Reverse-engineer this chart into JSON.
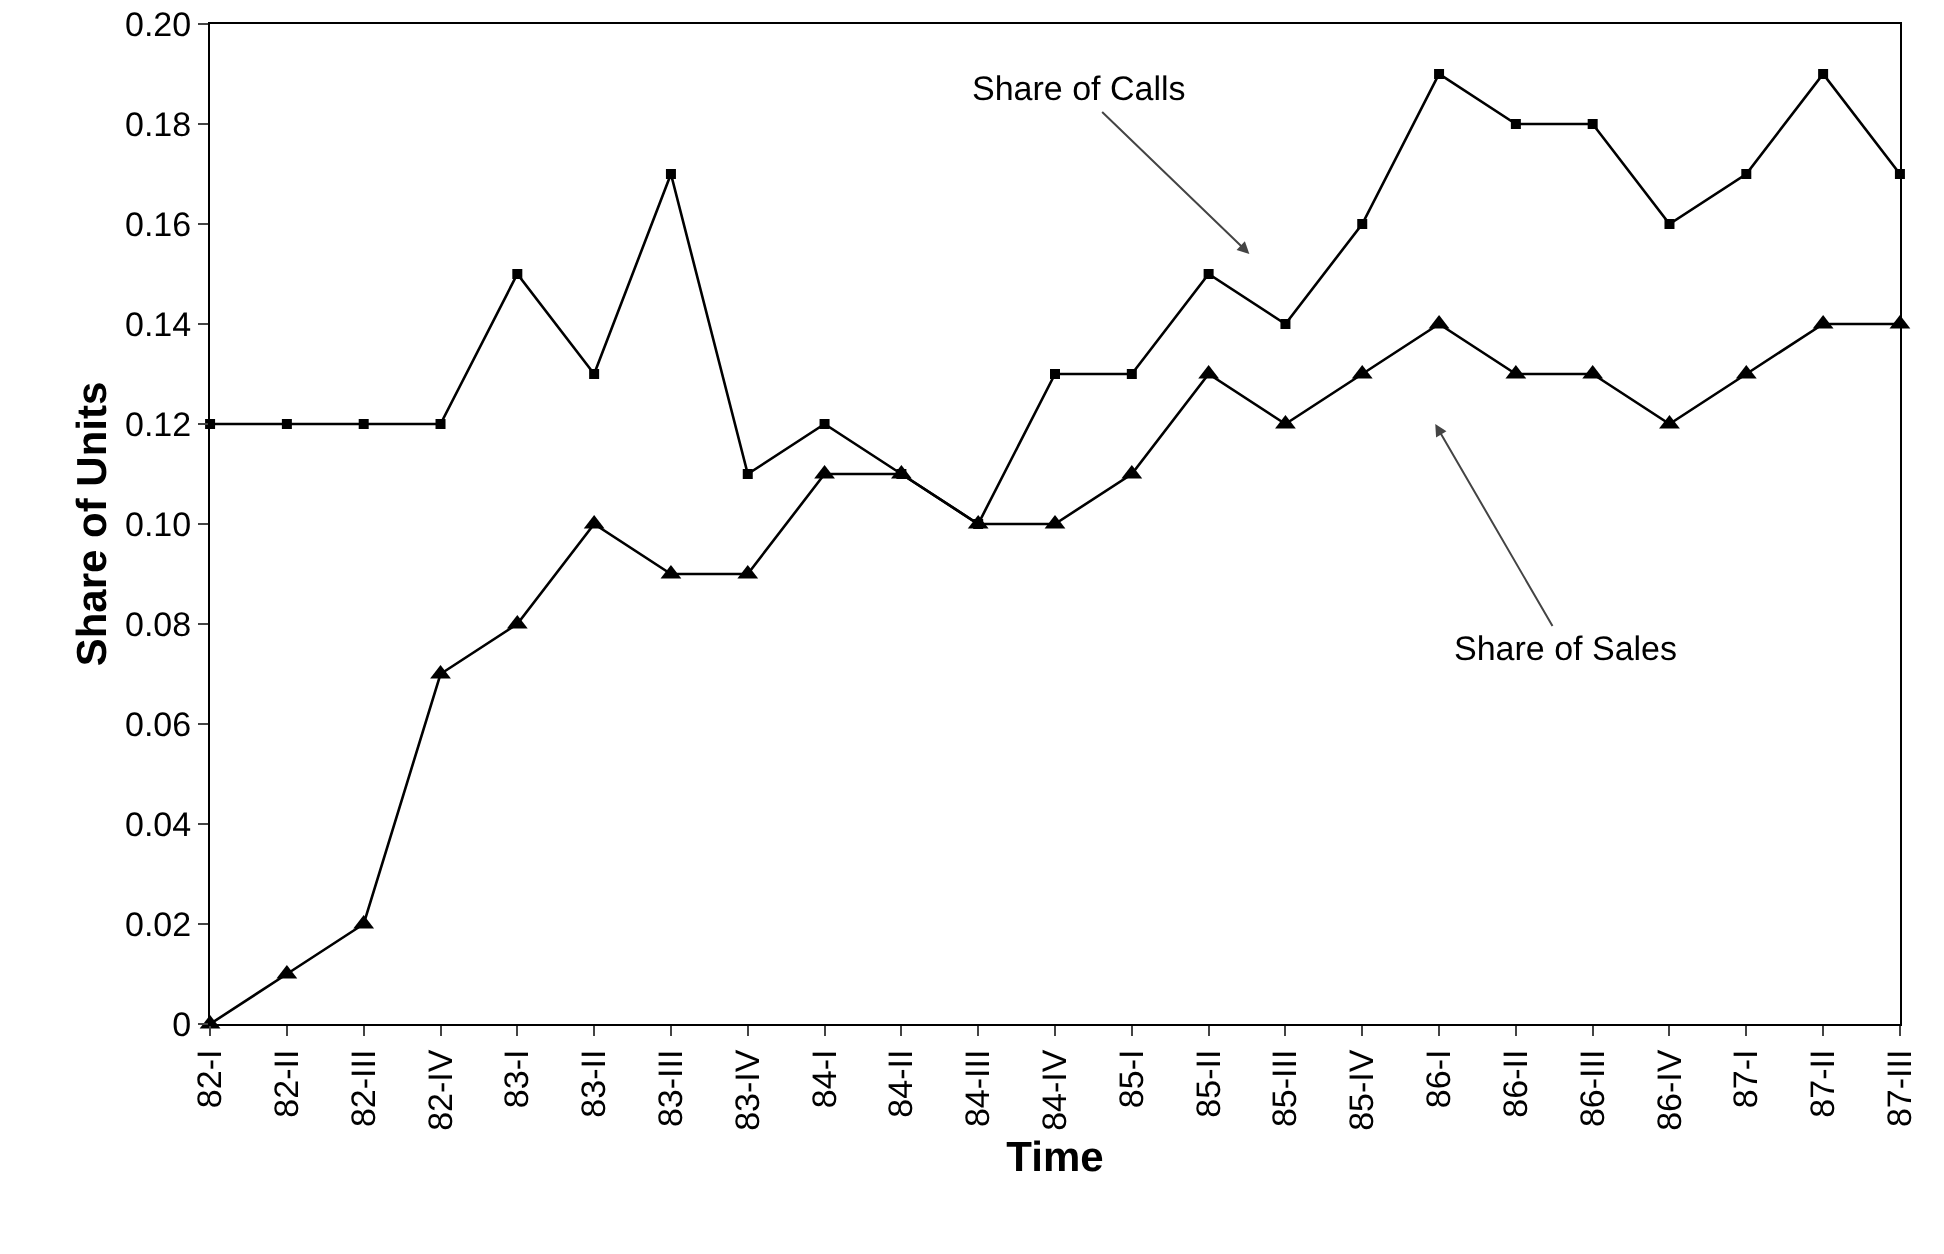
{
  "chart_data": {
    "type": "line",
    "xlabel": "Time",
    "ylabel": "Share of Units",
    "categories": [
      "82-I",
      "82-II",
      "82-III",
      "82-IV",
      "83-I",
      "83-II",
      "83-III",
      "83-IV",
      "84-I",
      "84-II",
      "84-III",
      "84-IV",
      "85-I",
      "85-II",
      "85-III",
      "85-IV",
      "86-I",
      "86-II",
      "86-III",
      "86-IV",
      "87-I",
      "87-II",
      "87-III"
    ],
    "series": [
      {
        "color": "#000000",
        "marker": "square",
        "values": [
          0.12,
          0.12,
          0.12,
          0.12,
          0.15,
          0.13,
          0.17,
          0.11,
          0.12,
          0.11,
          0.1,
          0.13,
          0.13,
          0.15,
          0.14,
          0.16,
          0.19,
          0.18,
          0.18,
          0.16,
          0.17,
          0.19,
          0.17
        ]
      },
      {
        "color": "#000000",
        "marker": "triangle",
        "values": [
          0,
          0.01,
          0.02,
          0.07,
          0.08,
          0.1,
          0.09,
          0.09,
          0.11,
          0.11,
          0.1,
          0.1,
          0.11,
          0.13,
          0.12,
          0.13,
          0.14,
          0.13,
          0.13,
          0.12,
          0.13,
          0.14,
          0.14
        ]
      }
    ],
    "ylim": [
      0,
      0.2
    ],
    "yticks": [
      0,
      0.02,
      0.04,
      0.06,
      0.08,
      {
        "value": 0.1,
        "label": "0.10"
      },
      0.12,
      0.14,
      0.16,
      0.18,
      {
        "value": 0.2,
        "label": "0.20"
      }
    ],
    "annotations": [
      "Share of Calls",
      "Share of Sales"
    ],
    "grid": false,
    "line_style": "solid"
  }
}
